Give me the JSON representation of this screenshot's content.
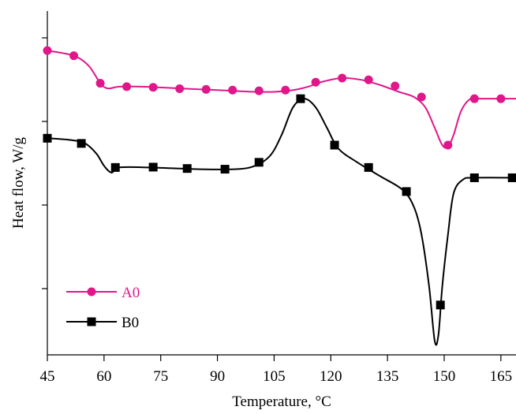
{
  "chart_data": {
    "type": "line",
    "title": "",
    "xlabel": "Temperature, °C",
    "ylabel": "Heat flow, W/g",
    "xlim": [
      45,
      169
    ],
    "ylim": [
      0,
      100
    ],
    "x_ticks": [
      45,
      60,
      75,
      90,
      105,
      120,
      135,
      150,
      165
    ],
    "x_tick_labels": [
      "45",
      "60",
      "75",
      "90",
      "105",
      "120",
      "135",
      "150",
      "165"
    ],
    "y_tick_labels_shown": false,
    "grid": false,
    "legend_position": "bottom-left",
    "series": [
      {
        "name": "A0",
        "color": "#e0168a",
        "marker": "circle",
        "curve": [
          [
            45,
            88.5
          ],
          [
            52,
            87
          ],
          [
            56,
            84
          ],
          [
            59,
            79
          ],
          [
            61,
            77.5
          ],
          [
            64,
            78
          ],
          [
            70,
            78
          ],
          [
            80,
            77.5
          ],
          [
            90,
            77
          ],
          [
            100,
            76.5
          ],
          [
            105,
            76.5
          ],
          [
            110,
            77
          ],
          [
            114,
            78
          ],
          [
            118,
            79.5
          ],
          [
            123,
            80.5
          ],
          [
            128,
            80
          ],
          [
            133,
            78.5
          ],
          [
            138,
            76.5
          ],
          [
            142,
            75
          ],
          [
            145,
            72
          ],
          [
            147.5,
            66
          ],
          [
            149.5,
            61
          ],
          [
            151,
            60.5
          ],
          [
            152.5,
            64
          ],
          [
            154.5,
            71
          ],
          [
            157,
            74.5
          ],
          [
            160,
            74.5
          ],
          [
            169,
            74.5
          ]
        ],
        "markers_x": [
          45,
          52,
          59,
          66,
          73,
          80,
          87,
          94,
          101,
          108,
          116,
          123,
          130,
          137,
          144,
          151,
          158,
          165
        ],
        "markers_y": [
          88.5,
          87,
          79,
          78,
          77.8,
          77.4,
          77.2,
          77,
          76.8,
          77,
          79.3,
          80.5,
          80,
          78.2,
          75,
          61,
          74.5,
          74.5
        ]
      },
      {
        "name": "B0",
        "color": "#000000",
        "marker": "square",
        "curve": [
          [
            45,
            63
          ],
          [
            51,
            62.5
          ],
          [
            55,
            61.5
          ],
          [
            58,
            58.5
          ],
          [
            60,
            55
          ],
          [
            62,
            53
          ],
          [
            64,
            54.5
          ],
          [
            72,
            54.5
          ],
          [
            85,
            54
          ],
          [
            95,
            54
          ],
          [
            100,
            55
          ],
          [
            104,
            58
          ],
          [
            107,
            64
          ],
          [
            110,
            72
          ],
          [
            113,
            74.5
          ],
          [
            116,
            72
          ],
          [
            119,
            66
          ],
          [
            122,
            60
          ],
          [
            127,
            56
          ],
          [
            133,
            52
          ],
          [
            139,
            48
          ],
          [
            142,
            43
          ],
          [
            144,
            35
          ],
          [
            146,
            20
          ],
          [
            147.5,
            4
          ],
          [
            148.5,
            6
          ],
          [
            149.5,
            20
          ],
          [
            151,
            35
          ],
          [
            152.5,
            47
          ],
          [
            155,
            51
          ],
          [
            158,
            51.5
          ],
          [
            169,
            51.5
          ]
        ],
        "markers_x": [
          45,
          54,
          63,
          73,
          82,
          92,
          101,
          112,
          121,
          130,
          140,
          149,
          158,
          168
        ],
        "markers_y": [
          63,
          61.5,
          54.5,
          54.6,
          54.2,
          54,
          56,
          74.5,
          61,
          54.5,
          47.5,
          14.5,
          51.5,
          51.5
        ]
      }
    ]
  }
}
